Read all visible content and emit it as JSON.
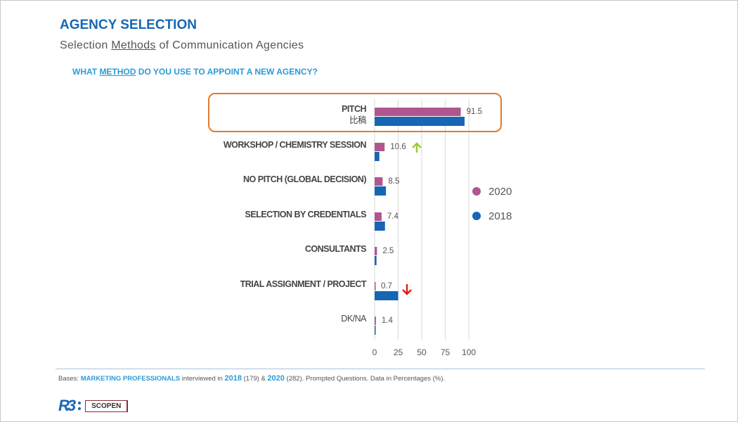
{
  "header": {
    "title": "AGENCY SELECTION",
    "subtitle_pre": "Selection ",
    "subtitle_u": "Methods",
    "subtitle_post": " of Communication Agencies",
    "question_pre": "WHAT ",
    "question_u": "METHOD",
    "question_post": " DO YOU USE TO APPOINT A NEW AGENCY?"
  },
  "chart_data": {
    "type": "bar",
    "orientation": "horizontal",
    "categories": [
      "PITCH\n比稿",
      "WORKSHOP / CHEMISTRY SESSION",
      "NO PITCH (GLOBAL DECISION)",
      "SELECTION BY CREDENTIALS",
      "CONSULTANTS",
      "TRIAL ASSIGNMENT / PROJECT",
      "DK/NA"
    ],
    "series": [
      {
        "name": "2020",
        "color": "#b0568f",
        "values": [
          91.5,
          10.6,
          8.5,
          7.4,
          2.5,
          0.7,
          1.4
        ],
        "labels": [
          "91.5",
          "10.6",
          "8.5",
          "7.4",
          "2.5",
          "0.7",
          "1.4"
        ]
      },
      {
        "name": "2018",
        "color": "#1666b4",
        "values": [
          95.5,
          5,
          12,
          11,
          2,
          25,
          1
        ]
      }
    ],
    "xlim": [
      0,
      100
    ],
    "xticks": [
      "0",
      "25",
      "50",
      "75",
      "100"
    ],
    "grid": true,
    "legend": "right",
    "highlight": {
      "category": "PITCH",
      "color": "#e07a2e"
    },
    "annotations": [
      {
        "category": "WORKSHOP / CHEMISTRY SESSION",
        "icon": "up-arrow-icon",
        "color": "#9acd32"
      },
      {
        "category": "TRIAL ASSIGNMENT / PROJECT",
        "icon": "down-arrow-icon",
        "color": "#e01e1e"
      }
    ]
  },
  "footer": {
    "bases": "Bases: ",
    "group": "MARKETING PROFESSIONALS",
    "mid": " interviewed in ",
    "y1": "2018",
    "n1": " (179) & ",
    "y2": "2020",
    "n2": " (282). Prompted  Questions. Data in Percentages  (%)."
  },
  "logo": {
    "r3": "R3",
    "scopen": "SCOPEN"
  }
}
